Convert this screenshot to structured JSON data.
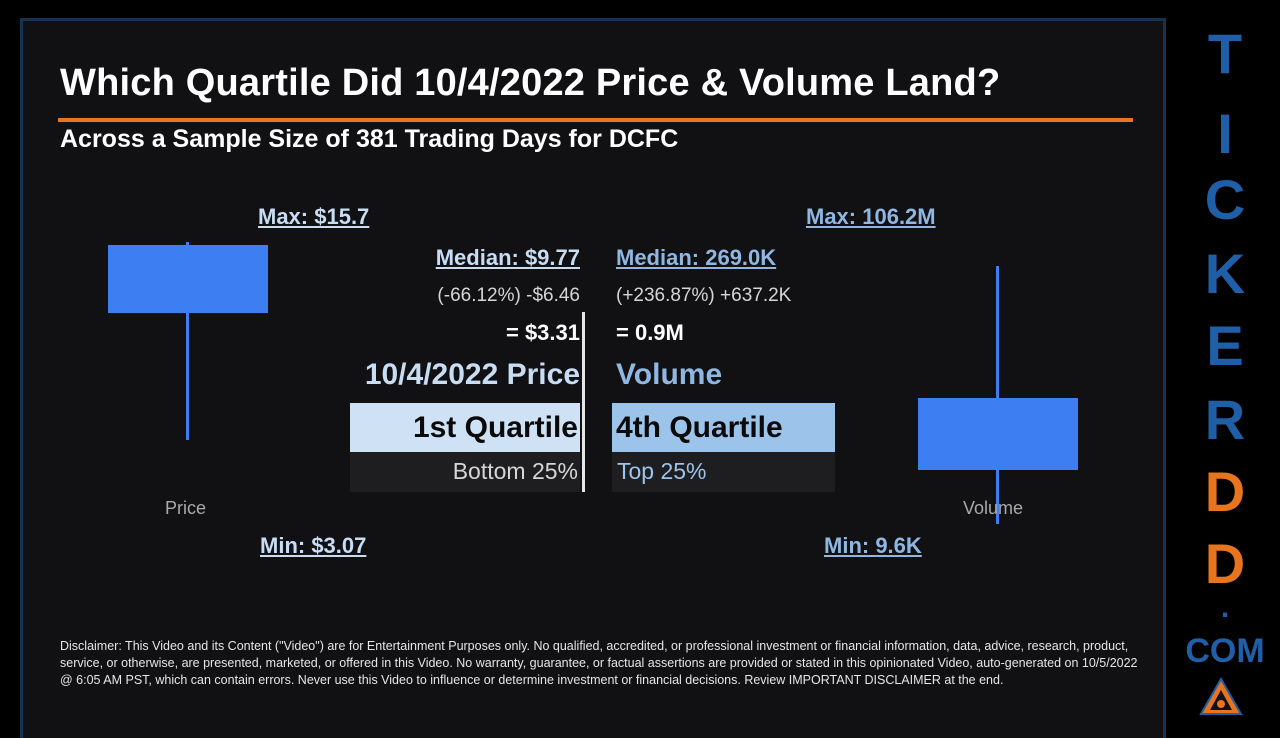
{
  "header": {
    "title": "Which Quartile Did 10/4/2022 Price & Volume Land?",
    "subtitle": "Across a Sample Size of 381 Trading Days for DCFC"
  },
  "price": {
    "max_label": "Max: $15.7",
    "min_label": "Min: $3.07",
    "median_label": "Median: $9.77",
    "change_text": "(-66.12%) -$6.46",
    "result_text": "= $3.31",
    "heading": "10/4/2022 Price",
    "quartile": "1st Quartile",
    "quartile_desc": "Bottom 25%",
    "axis_label": "Price"
  },
  "volume": {
    "max_label": "Max: 106.2M",
    "min_label": "Min: 9.6K",
    "median_label": "Median: 269.0K",
    "change_text": "(+236.87%) +637.2K",
    "result_text": "= 0.9M",
    "heading": "Volume",
    "quartile": "4th Quartile",
    "quartile_desc": "Top 25%",
    "axis_label": "Volume"
  },
  "disclaimer": "Disclaimer: This Video and its Content (\"Video\") are for Entertainment Purposes only. No qualified, accredited, or professional investment or financial information, data, advice, research, product, service, or otherwise, are presented, marketed, or offered in this Video. No warranty, guarantee, or factual assertions are provided or stated in this opinionated Video, auto-generated on 10/5/2022 @ 6:05 AM PST, which can contain errors. Never use this Video to influence or determine investment or financial decisions. Review IMPORTANT DISCLAIMER at the end.",
  "brand": {
    "letters": [
      "T",
      "I",
      "C",
      "K",
      "E",
      "R",
      "D",
      "D",
      "."
    ],
    "suffix": "COM",
    "colors": {
      "blue": "#1f5fa8",
      "orange": "#e8741e"
    }
  },
  "colors": {
    "box": "#3d7ff2",
    "accent_rule": "#e8741e",
    "price_quartile_bg": "#cfe2f5",
    "volume_quartile_bg": "#9cc3ea"
  }
}
